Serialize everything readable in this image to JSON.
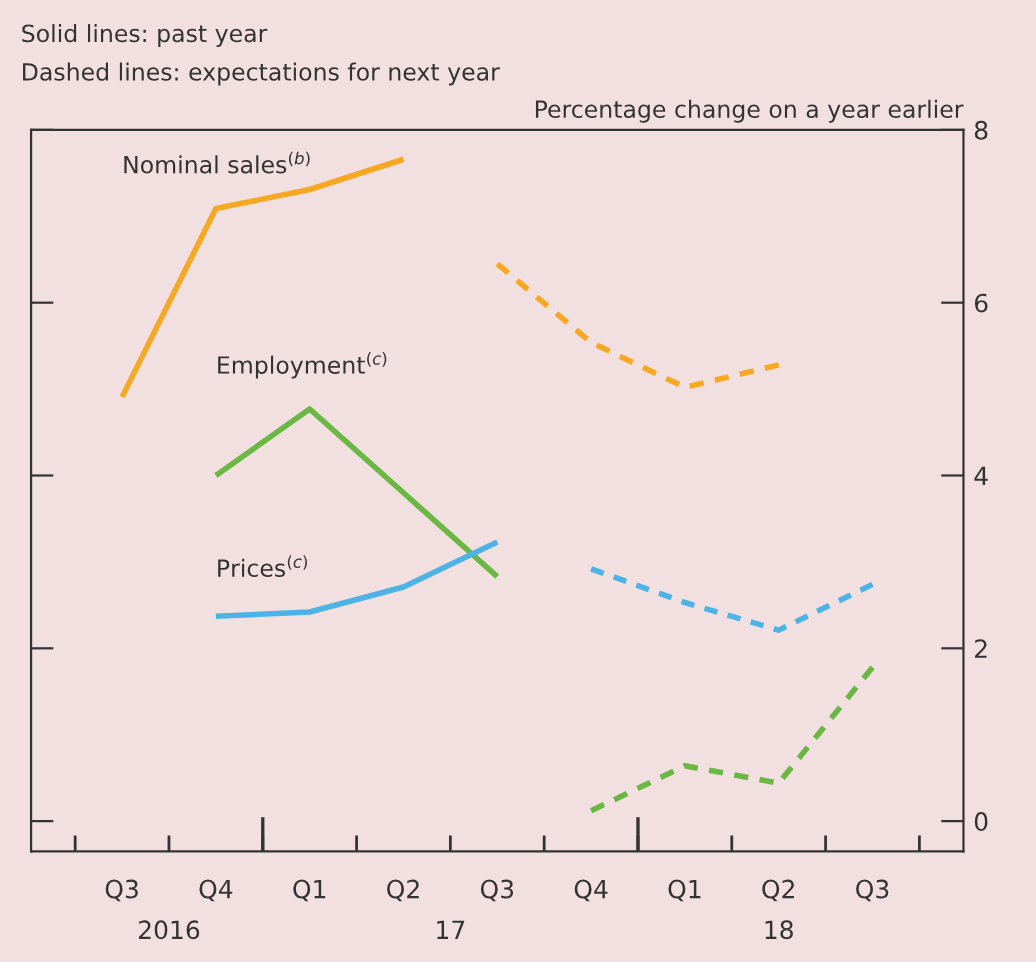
{
  "chart_data": {
    "type": "line",
    "annotations": [
      "Solid lines: past year",
      "Dashed lines: expectations for next year",
      "2016",
      "17",
      "18"
    ],
    "ylabel": "Percentage change on a year earlier",
    "categories": [
      "Q3",
      "Q4",
      "Q1",
      "Q2",
      "Q3",
      "Q4",
      "Q1",
      "Q2",
      "Q3"
    ],
    "ylim": [
      -0.35,
      8
    ],
    "yticks": [
      0,
      2,
      4,
      6,
      8
    ],
    "grid": false,
    "legend": false,
    "marker": "none",
    "series": [
      {
        "name": "Nominal sales$^{(b)}$",
        "color": "#f7a823",
        "line_style": "solid",
        "values": [
          4.91,
          7.09,
          7.31,
          7.66,
          null,
          null,
          null,
          null,
          null
        ]
      },
      {
        "color": "#f7a823",
        "line_style": "dashed",
        "values": [
          null,
          null,
          null,
          null,
          6.45,
          5.54,
          5.02,
          5.28,
          null
        ]
      },
      {
        "name": "Employment$^{(c)}$",
        "color": "#6ab843",
        "line_style": "solid",
        "values": [
          null,
          4.0,
          4.77,
          3.8,
          2.83,
          null,
          null,
          null,
          null
        ]
      },
      {
        "color": "#6ab843",
        "line_style": "dashed",
        "values": [
          null,
          null,
          null,
          null,
          null,
          0.12,
          0.64,
          0.44,
          1.78
        ]
      },
      {
        "name": "Prices$^{(c)}$",
        "color": "#4db3e6",
        "line_style": "solid",
        "values": [
          null,
          2.37,
          2.42,
          2.71,
          3.23,
          null,
          null,
          null,
          null
        ]
      },
      {
        "color": "#4db3e6",
        "line_style": "dashed",
        "values": [
          null,
          null,
          null,
          null,
          null,
          2.92,
          2.53,
          2.21,
          2.74
        ]
      }
    ]
  }
}
